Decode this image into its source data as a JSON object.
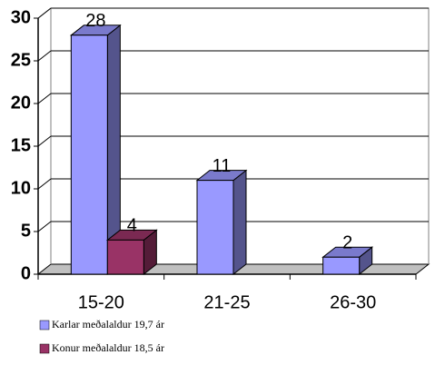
{
  "chart_data": {
    "type": "bar3d",
    "categories": [
      "15-20",
      "21-25",
      "26-30"
    ],
    "series": [
      {
        "name": "Karlar meðalaldur 19,7 ár",
        "color": "#9999ff",
        "values": [
          28,
          11,
          2
        ]
      },
      {
        "name": "Konur meðalaldur 18,5 ár",
        "color": "#993366",
        "values": [
          4,
          null,
          null
        ]
      }
    ],
    "ylim": [
      0,
      30
    ],
    "yticks": [
      0,
      5,
      10,
      15,
      20,
      25,
      30
    ],
    "grid": true,
    "legend": "bottom-left"
  }
}
